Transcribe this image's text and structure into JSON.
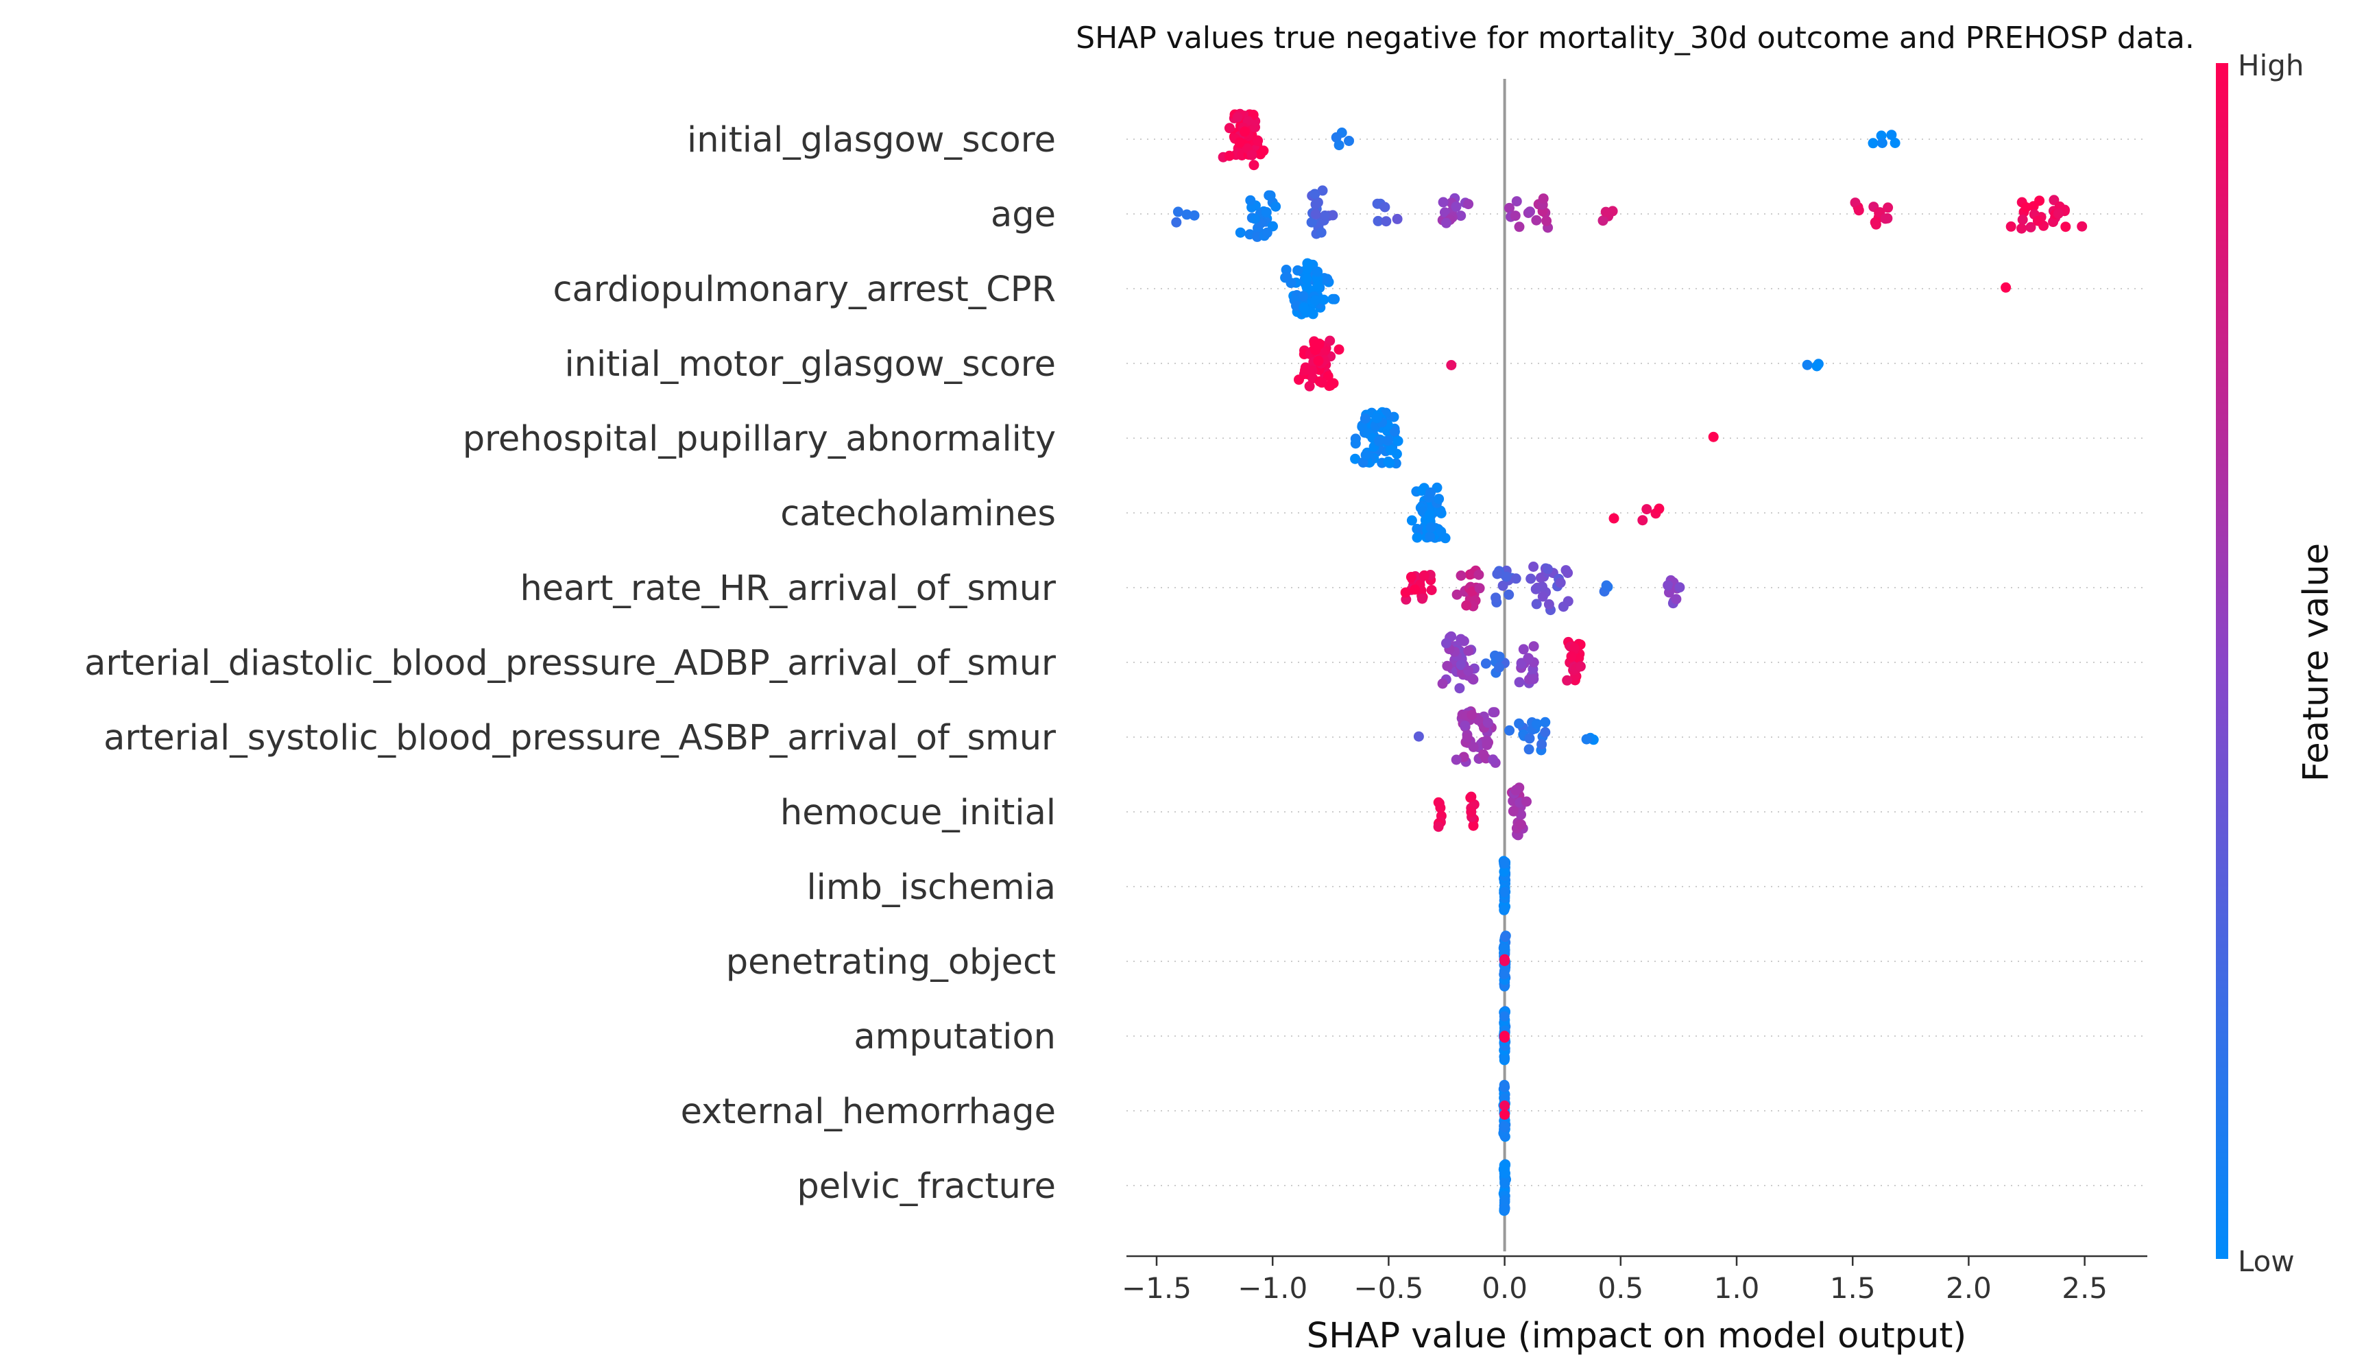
{
  "chart_data": {
    "type": "scatter",
    "variant": "shap-beeswarm",
    "title": "SHAP values true negative for mortality_30d outcome and PREHOSP data.",
    "xlabel": "SHAP value (impact on model output)",
    "xlim": [
      -1.63,
      2.77
    ],
    "xticks": [
      -1.5,
      -1.0,
      -0.5,
      0.0,
      0.5,
      1.0,
      1.5,
      2.0,
      2.5
    ],
    "xtick_labels": [
      "−1.5",
      "−1.0",
      "−0.5",
      "0.0",
      "0.5",
      "1.0",
      "1.5",
      "2.0",
      "2.5"
    ],
    "zero_line": 0.0,
    "colorbar": {
      "title": "Feature value",
      "high_label": "High",
      "low_label": "Low",
      "low_color": "#008bfb",
      "mid_color": "#8a45c8",
      "high_color": "#ff0052"
    },
    "features": [
      {
        "name": "initial_glasgow_score",
        "clusters": [
          {
            "c": -1.12,
            "s": 0.08,
            "n": 70,
            "f": 0.97,
            "h": 1.0
          },
          {
            "c": -0.73,
            "s": 0.07,
            "n": 4,
            "f": 0.08,
            "h": 0.35
          },
          {
            "c": 1.64,
            "s": 0.07,
            "n": 5,
            "f": 0.02,
            "h": 0.3
          }
        ]
      },
      {
        "name": "age",
        "clusters": [
          {
            "c": -1.38,
            "s": 0.06,
            "n": 4,
            "f": 0.2,
            "h": 0.35
          },
          {
            "c": -1.05,
            "s": 0.09,
            "n": 26,
            "f": 0.05,
            "h": 0.9
          },
          {
            "c": -0.8,
            "s": 0.05,
            "n": 18,
            "f": 0.28,
            "h": 0.9
          },
          {
            "c": -0.5,
            "s": 0.07,
            "n": 6,
            "f": 0.32,
            "h": 0.4
          },
          {
            "c": -0.22,
            "s": 0.06,
            "n": 14,
            "f": 0.55,
            "h": 0.7
          },
          {
            "c": 0.05,
            "s": 0.07,
            "n": 8,
            "f": 0.6,
            "h": 0.5
          },
          {
            "c": 0.17,
            "s": 0.04,
            "n": 8,
            "f": 0.68,
            "h": 0.6
          },
          {
            "c": 0.44,
            "s": 0.06,
            "n": 4,
            "f": 0.8,
            "h": 0.3
          },
          {
            "c": 1.6,
            "s": 0.1,
            "n": 12,
            "f": 0.92,
            "h": 0.5
          },
          {
            "c": 2.32,
            "s": 0.17,
            "n": 24,
            "f": 0.95,
            "h": 0.6
          }
        ]
      },
      {
        "name": "cardiopulmonary_arrest_CPR",
        "clusters": [
          {
            "c": -0.84,
            "s": 0.08,
            "n": 72,
            "f": 0.02,
            "h": 1.0
          },
          {
            "c": 2.16,
            "s": 0.0,
            "n": 1,
            "f": 0.98,
            "h": 0.1
          }
        ]
      },
      {
        "name": "initial_motor_glasgow_score",
        "clusters": [
          {
            "c": -0.8,
            "s": 0.08,
            "n": 50,
            "f": 0.97,
            "h": 0.9
          },
          {
            "c": -0.23,
            "s": 0.0,
            "n": 1,
            "f": 0.85,
            "h": 0.1
          },
          {
            "c": 1.33,
            "s": 0.04,
            "n": 3,
            "f": 0.02,
            "h": 0.25
          }
        ]
      },
      {
        "name": "prehospital_pupillary_abnormality",
        "clusters": [
          {
            "c": -0.55,
            "s": 0.09,
            "n": 70,
            "f": 0.02,
            "h": 1.0
          },
          {
            "c": 0.9,
            "s": 0.0,
            "n": 1,
            "f": 0.98,
            "h": 0.1
          }
        ]
      },
      {
        "name": "catecholamines",
        "clusters": [
          {
            "c": -0.33,
            "s": 0.07,
            "n": 55,
            "f": 0.02,
            "h": 1.0
          },
          {
            "c": 0.5,
            "s": 0.25,
            "n": 5,
            "f": 0.96,
            "h": 0.3
          }
        ]
      },
      {
        "name": "heart_rate_HR_arrival_of_smur",
        "clusters": [
          {
            "c": -0.37,
            "s": 0.07,
            "n": 20,
            "f": 0.95,
            "h": 0.5
          },
          {
            "c": -0.15,
            "s": 0.06,
            "n": 20,
            "f": 0.75,
            "h": 0.8
          },
          {
            "c": 0.0,
            "s": 0.06,
            "n": 12,
            "f": 0.3,
            "h": 0.7
          },
          {
            "c": 0.2,
            "s": 0.1,
            "n": 24,
            "f": 0.38,
            "h": 0.9
          },
          {
            "c": 0.45,
            "s": 0.03,
            "n": 3,
            "f": 0.15,
            "h": 0.3
          },
          {
            "c": 0.73,
            "s": 0.03,
            "n": 10,
            "f": 0.48,
            "h": 0.6
          }
        ]
      },
      {
        "name": "arterial_diastolic_blood_pressure_ADBP_arrival_of_smur",
        "clusters": [
          {
            "c": -0.2,
            "s": 0.06,
            "n": 34,
            "f": 0.52,
            "h": 1.0
          },
          {
            "c": -0.04,
            "s": 0.04,
            "n": 8,
            "f": 0.2,
            "h": 0.5
          },
          {
            "c": 0.1,
            "s": 0.05,
            "n": 16,
            "f": 0.5,
            "h": 0.8
          },
          {
            "c": 0.3,
            "s": 0.04,
            "n": 24,
            "f": 0.95,
            "h": 0.8
          }
        ]
      },
      {
        "name": "arterial_systolic_blood_pressure_ASBP_arrival_of_smur",
        "clusters": [
          {
            "c": -0.37,
            "s": 0.0,
            "n": 1,
            "f": 0.3,
            "h": 0.1
          },
          {
            "c": -0.12,
            "s": 0.07,
            "n": 44,
            "f": 0.58,
            "h": 1.0
          },
          {
            "c": 0.12,
            "s": 0.08,
            "n": 16,
            "f": 0.15,
            "h": 0.6
          },
          {
            "c": 0.36,
            "s": 0.04,
            "n": 3,
            "f": 0.05,
            "h": 0.2
          }
        ]
      },
      {
        "name": "hemocue_initial",
        "clusters": [
          {
            "c": -0.28,
            "s": 0.01,
            "n": 10,
            "f": 0.97,
            "h": 0.6
          },
          {
            "c": -0.14,
            "s": 0.01,
            "n": 8,
            "f": 0.97,
            "h": 0.6
          },
          {
            "c": 0.06,
            "s": 0.03,
            "n": 26,
            "f": 0.62,
            "h": 1.0
          }
        ]
      },
      {
        "name": "limb_ischemia",
        "clusters": [
          {
            "c": 0.0,
            "s": 0.004,
            "n": 44,
            "f": 0.03,
            "h": 1.0
          }
        ]
      },
      {
        "name": "penetrating_object",
        "clusters": [
          {
            "c": 0.0,
            "s": 0.004,
            "n": 44,
            "f": 0.08,
            "h": 1.0
          },
          {
            "c": 0.0,
            "s": 0.0,
            "n": 2,
            "f": 0.98,
            "h": 0.1
          }
        ]
      },
      {
        "name": "amputation",
        "clusters": [
          {
            "c": 0.0,
            "s": 0.004,
            "n": 44,
            "f": 0.05,
            "h": 1.0
          },
          {
            "c": 0.0,
            "s": 0.0,
            "n": 2,
            "f": 0.98,
            "h": 0.1
          }
        ]
      },
      {
        "name": "external_hemorrhage",
        "clusters": [
          {
            "c": 0.0,
            "s": 0.004,
            "n": 44,
            "f": 0.05,
            "h": 1.0
          },
          {
            "c": 0.0,
            "s": 0.0,
            "n": 2,
            "f": 0.98,
            "h": 0.3
          }
        ]
      },
      {
        "name": "pelvic_fracture",
        "clusters": [
          {
            "c": 0.0,
            "s": 0.004,
            "n": 44,
            "f": 0.03,
            "h": 1.0
          }
        ]
      }
    ]
  }
}
